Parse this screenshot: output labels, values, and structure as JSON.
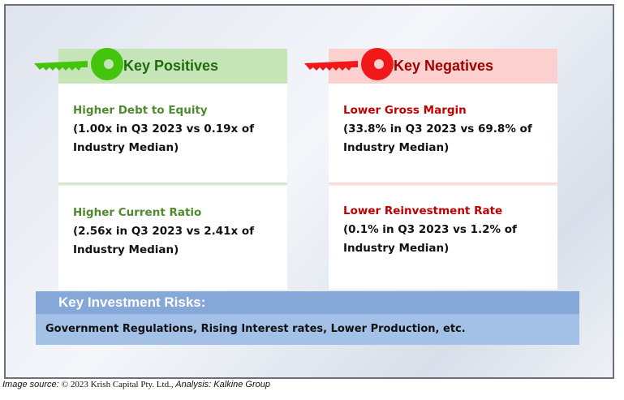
{
  "positives": {
    "title": "Key Positives",
    "items": [
      {
        "heading": "Higher Debt to Equity",
        "detail": "(1.00x in Q3 2023 vs 0.19x of Industry Median)"
      },
      {
        "heading": "Higher Current Ratio",
        "detail": "(2.56x in Q3 2023 vs 2.41x of Industry Median)"
      }
    ]
  },
  "negatives": {
    "title": "Key Negatives",
    "items": [
      {
        "heading": "Lower Gross Margin",
        "detail": "(33.8% in Q3 2023 vs 69.8% of Industry Median)"
      },
      {
        "heading": "Lower Reinvestment Rate",
        "detail": "(0.1% in Q3 2023 vs 1.2% of Industry Median)"
      }
    ]
  },
  "risks": {
    "title": "Key Investment Risks:",
    "body": "Government Regulations, Rising Interest rates, Lower Production, etc."
  },
  "source": {
    "prefix": "Image source: ",
    "owner": "© 2023 Krish Capital Pty. Ltd.,",
    "analysis": " Analysis: Kalkine Group"
  },
  "colors": {
    "positive": "#4e8a2e",
    "negative": "#c00000",
    "key_green": "#44c40c",
    "key_red": "#f01818"
  }
}
